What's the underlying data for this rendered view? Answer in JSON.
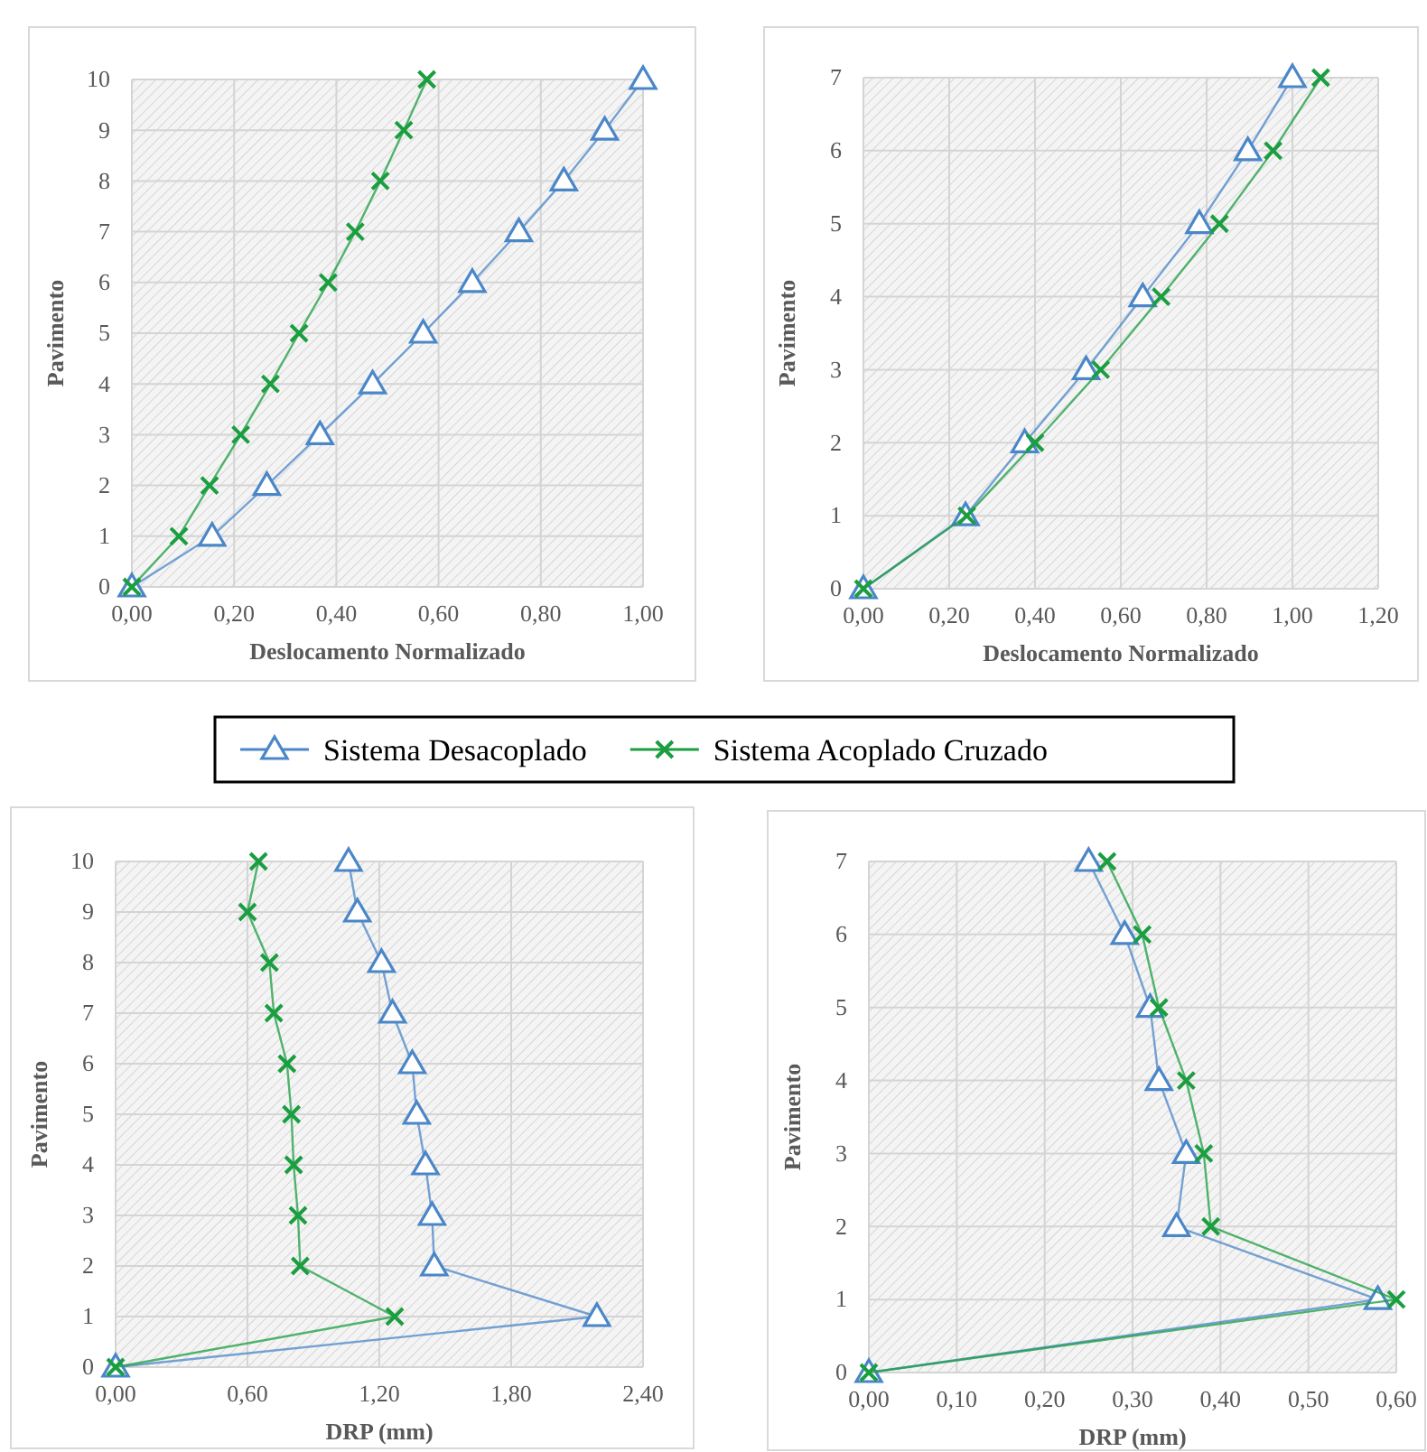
{
  "chart_data": [
    {
      "type": "line",
      "xlabel": "Deslocamento Normalizado",
      "ylabel": "Pavimento",
      "xlim": [
        0,
        1
      ],
      "xticks": [
        {
          "value": 0,
          "label": "0,00"
        },
        {
          "value": 0.2,
          "label": "0,20"
        },
        {
          "value": 0.4,
          "label": "0,40"
        },
        {
          "value": 0.6,
          "label": "0,60"
        },
        {
          "value": 0.8,
          "label": "0,80"
        },
        {
          "value": 1,
          "label": "1,00"
        }
      ],
      "ylim": [
        0,
        10
      ],
      "yticks": [
        0,
        1,
        2,
        3,
        4,
        5,
        6,
        7,
        8,
        9,
        10
      ],
      "grid": true,
      "legend": "bottom",
      "line_style": "solid",
      "series": [
        {
          "name": "Sistema Desacoplado",
          "color": "#4a86c8",
          "marker": "triangle",
          "x": [
            0,
            0.157,
            0.264,
            0.368,
            0.471,
            0.57,
            0.666,
            0.757,
            0.845,
            0.925,
            1.0
          ],
          "values": [
            0,
            1,
            2,
            3,
            4,
            5,
            6,
            7,
            8,
            9,
            10
          ]
        },
        {
          "name": "Sistema Acoplado Cruzado",
          "color": "#1a9e3f",
          "marker": "cross",
          "x": [
            0,
            0.092,
            0.152,
            0.213,
            0.271,
            0.327,
            0.384,
            0.437,
            0.486,
            0.532,
            0.577
          ],
          "values": [
            0,
            1,
            2,
            3,
            4,
            5,
            6,
            7,
            8,
            9,
            10
          ]
        }
      ]
    },
    {
      "type": "line",
      "xlabel": "Deslocamento Normalizado",
      "ylabel": "Pavimento",
      "xlim": [
        0,
        1.2
      ],
      "xticks": [
        {
          "value": 0,
          "label": "0,00"
        },
        {
          "value": 0.2,
          "label": "0,20"
        },
        {
          "value": 0.4,
          "label": "0,40"
        },
        {
          "value": 0.6,
          "label": "0,60"
        },
        {
          "value": 0.8,
          "label": "0,80"
        },
        {
          "value": 1,
          "label": "1,00"
        },
        {
          "value": 1.2,
          "label": "1,20"
        }
      ],
      "ylim": [
        0,
        7
      ],
      "yticks": [
        0,
        1,
        2,
        3,
        4,
        5,
        6,
        7
      ],
      "grid": true,
      "line_style": "solid",
      "series": [
        {
          "color": "#4a86c8",
          "marker": "triangle",
          "x": [
            0,
            0.238,
            0.376,
            0.519,
            0.651,
            0.783,
            0.896,
            1.0
          ],
          "values": [
            0,
            1,
            2,
            3,
            4,
            5,
            6,
            7
          ]
        },
        {
          "color": "#1a9e3f",
          "marker": "cross",
          "x": [
            0,
            0.241,
            0.4,
            0.553,
            0.694,
            0.83,
            0.955,
            1.066
          ],
          "values": [
            0,
            1,
            2,
            3,
            4,
            5,
            6,
            7
          ]
        }
      ]
    },
    {
      "type": "line",
      "xlabel": "DRP (mm)",
      "ylabel": "Pavimento",
      "xlim": [
        0,
        2.4
      ],
      "xticks": [
        {
          "value": 0,
          "label": "0,00"
        },
        {
          "value": 0.6,
          "label": "0,60"
        },
        {
          "value": 1.2,
          "label": "1,20"
        },
        {
          "value": 1.8,
          "label": "1,80"
        },
        {
          "value": 2.4,
          "label": "2,40"
        }
      ],
      "ylim": [
        0,
        10
      ],
      "yticks": [
        0,
        1,
        2,
        3,
        4,
        5,
        6,
        7,
        8,
        9,
        10
      ],
      "grid": true,
      "line_style": "solid",
      "series": [
        {
          "color": "#4a86c8",
          "marker": "triangle",
          "x": [
            0,
            2.19,
            1.45,
            1.44,
            1.41,
            1.37,
            1.35,
            1.26,
            1.21,
            1.1,
            1.06
          ],
          "values": [
            0,
            1,
            2,
            3,
            4,
            5,
            6,
            7,
            8,
            9,
            10
          ]
        },
        {
          "color": "#1a9e3f",
          "marker": "cross",
          "x": [
            0,
            1.27,
            0.84,
            0.83,
            0.81,
            0.8,
            0.78,
            0.72,
            0.7,
            0.6,
            0.65
          ],
          "values": [
            0,
            1,
            2,
            3,
            4,
            5,
            6,
            7,
            8,
            9,
            10
          ]
        }
      ]
    },
    {
      "type": "line",
      "xlabel": "DRP (mm)",
      "ylabel": "Pavimento",
      "xlim": [
        0,
        0.6
      ],
      "xticks": [
        {
          "value": 0,
          "label": "0,00"
        },
        {
          "value": 0.1,
          "label": "0,10"
        },
        {
          "value": 0.2,
          "label": "0,20"
        },
        {
          "value": 0.3,
          "label": "0,30"
        },
        {
          "value": 0.4,
          "label": "0,40"
        },
        {
          "value": 0.5,
          "label": "0,50"
        },
        {
          "value": 0.6,
          "label": "0,60"
        }
      ],
      "ylim": [
        0,
        7
      ],
      "yticks": [
        0,
        1,
        2,
        3,
        4,
        5,
        6,
        7
      ],
      "grid": true,
      "line_style": "solid",
      "series": [
        {
          "color": "#4a86c8",
          "marker": "triangle",
          "x": [
            0,
            0.579,
            0.35,
            0.361,
            0.33,
            0.32,
            0.291,
            0.25
          ],
          "values": [
            0,
            1,
            2,
            3,
            4,
            5,
            6,
            7
          ]
        },
        {
          "color": "#1a9e3f",
          "marker": "cross",
          "x": [
            0,
            0.6,
            0.389,
            0.381,
            0.361,
            0.33,
            0.311,
            0.271
          ],
          "values": [
            0,
            1,
            2,
            3,
            4,
            5,
            6,
            7
          ]
        }
      ]
    }
  ]
}
